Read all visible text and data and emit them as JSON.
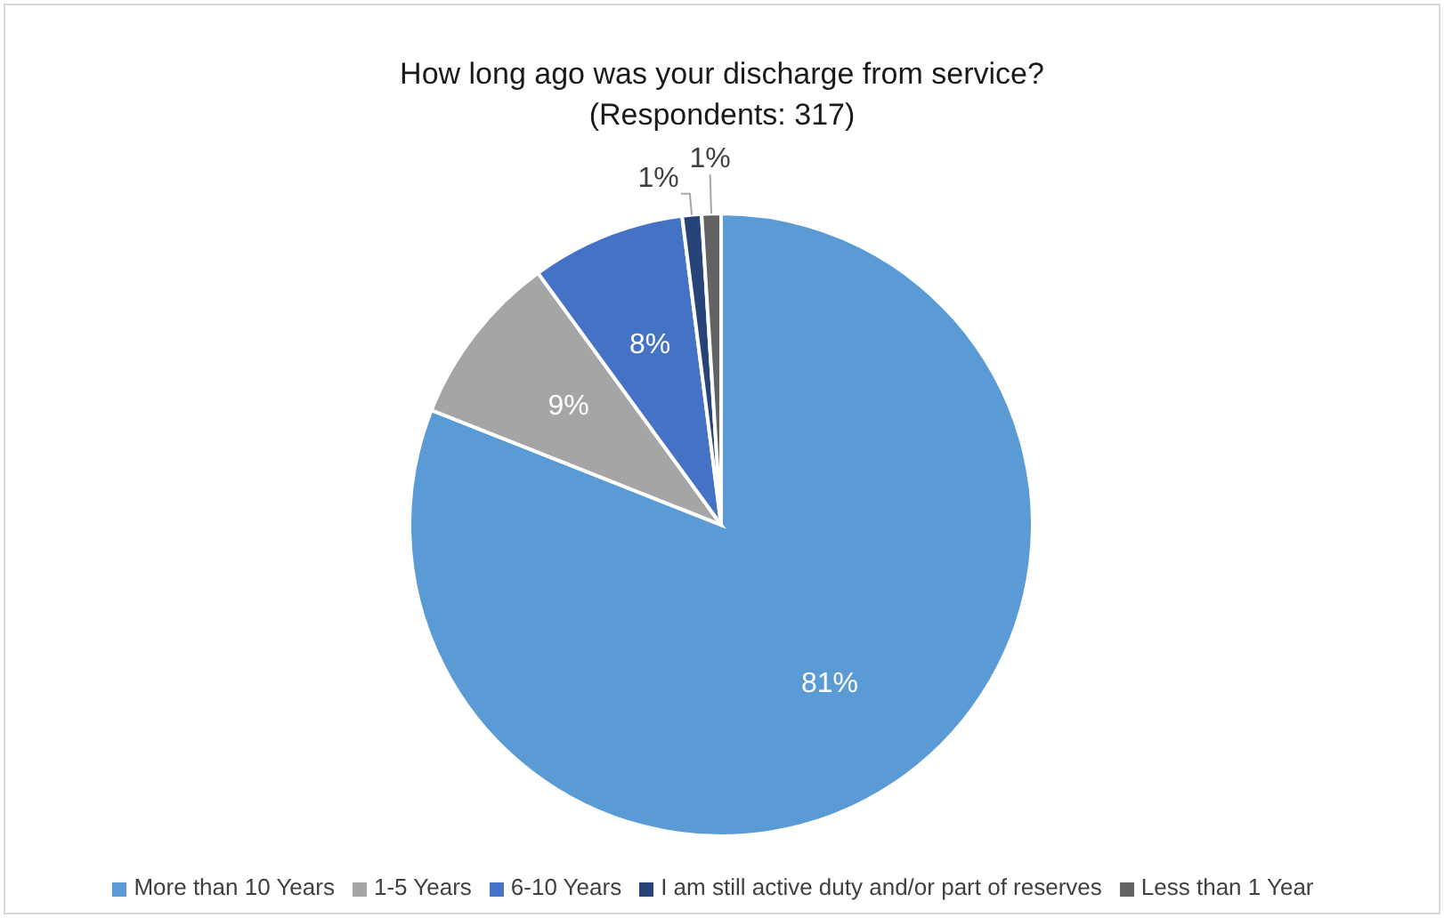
{
  "chart_data": {
    "type": "pie",
    "title": "How long ago was your discharge from service?\n(Respondents: 317)",
    "categories": [
      "More than 10 Years",
      "1-5 Years",
      "6-10 Years",
      "I am still active duty and/or part of reserves",
      "Less than 1 Year"
    ],
    "values": [
      81,
      9,
      8,
      1,
      1
    ],
    "value_labels": [
      "81%",
      "9%",
      "8%",
      "1%",
      "1%"
    ],
    "colors": [
      "#5b9bd5",
      "#a5a5a5",
      "#4472c4",
      "#264478",
      "#636363"
    ],
    "legend": "bottom"
  }
}
